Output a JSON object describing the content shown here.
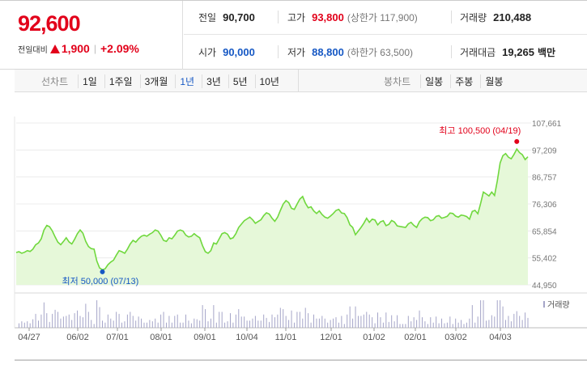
{
  "quote": {
    "price": "92,600",
    "change_label": "전일대비",
    "change_amount": "1,900",
    "change_percent": "+2.09%",
    "up_color": "#e2001a",
    "down_color": "#1658c4"
  },
  "stats": {
    "prev_close_label": "전일",
    "prev_close": "90,700",
    "high_label": "고가",
    "high": "93,800",
    "upper_limit": "(상한가 117,900)",
    "volume_label": "거래량",
    "volume": "210,488",
    "open_label": "시가",
    "open": "90,000",
    "low_label": "저가",
    "low": "88,800",
    "lower_limit": "(하한가 63,500)",
    "amount_label": "거래대금",
    "amount": "19,265",
    "amount_unit": "백만"
  },
  "toolbar": {
    "line_title": "선차트",
    "line_periods": [
      "1일",
      "1주일",
      "3개월",
      "1년",
      "3년",
      "5년",
      "10년"
    ],
    "line_active": "1년",
    "candle_title": "봉차트",
    "candle_periods": [
      "일봉",
      "주봉",
      "월봉"
    ]
  },
  "chart_data": {
    "type": "area",
    "x_tick_labels": [
      "04/27",
      "06/02",
      "07/01",
      "08/01",
      "09/01",
      "10/04",
      "11/01",
      "12/01",
      "01/02",
      "02/01",
      "03/02",
      "04/03"
    ],
    "y_tick_labels": [
      "107,661",
      "97,209",
      "86,757",
      "76,306",
      "65,854",
      "55,402",
      "44,950"
    ],
    "ylim": [
      44950,
      107661
    ],
    "values": [
      57500,
      57800,
      57200,
      57600,
      58200,
      57900,
      58800,
      60500,
      61200,
      62800,
      66200,
      68000,
      67500,
      65800,
      63500,
      61500,
      60500,
      61800,
      63200,
      61600,
      60800,
      62600,
      64800,
      66200,
      65000,
      61800,
      59800,
      59000,
      58800,
      54200,
      51500,
      50800,
      51200,
      52800,
      53800,
      54500,
      56500,
      58200,
      57800,
      57200,
      58800,
      60800,
      62200,
      61500,
      62800,
      63800,
      64200,
      63800,
      64600,
      65200,
      66200,
      65800,
      64200,
      62200,
      61800,
      63200,
      62800,
      64200,
      65800,
      66200,
      65800,
      64200,
      63500,
      63800,
      64800,
      63900,
      63200,
      60200,
      57800,
      57200,
      58200,
      61200,
      60800,
      62800,
      64800,
      65200,
      64600,
      62800,
      63200,
      64800,
      67200,
      68500,
      69800,
      70500,
      71200,
      70200,
      68800,
      69500,
      70200,
      71800,
      72900,
      72400,
      70800,
      69600,
      71200,
      73800,
      76200,
      77600,
      76800,
      74600,
      74200,
      76200,
      78200,
      79200,
      76600,
      74800,
      75200,
      73600,
      72600,
      73600,
      72200,
      71200,
      70800,
      71600,
      72600,
      73800,
      74200,
      72800,
      72600,
      71000,
      68200,
      67200,
      64400,
      65800,
      67200,
      68800,
      70800,
      69200,
      70400,
      70100,
      68200,
      69400,
      69800,
      67900,
      68400,
      69900,
      69300,
      67800,
      67600,
      67400,
      67200,
      68600,
      69200,
      68000,
      67200,
      69400,
      70600,
      71200,
      71000,
      69800,
      70200,
      71500,
      71800,
      70800,
      71100,
      71500,
      72800,
      72600,
      71600,
      71200,
      72000,
      71800,
      71400,
      70400,
      73400,
      73800,
      72500,
      76500,
      80900,
      80200,
      79400,
      80900,
      79600,
      85200,
      92200,
      95000,
      95800,
      94400,
      93800,
      95500,
      97600,
      96200,
      95400,
      93500,
      94600
    ],
    "high_annotation": "최고 100,500 (04/19)",
    "low_annotation": "최저 50,000 (07/13)",
    "high_value": 100500,
    "low_value": 50000,
    "line_color": "#70d83e",
    "fill_color": "#e6f8d9",
    "high_color": "#e2001a",
    "low_color": "#1658c4",
    "volume_legend": "거래량",
    "volume_color": "#a5a5c8"
  }
}
